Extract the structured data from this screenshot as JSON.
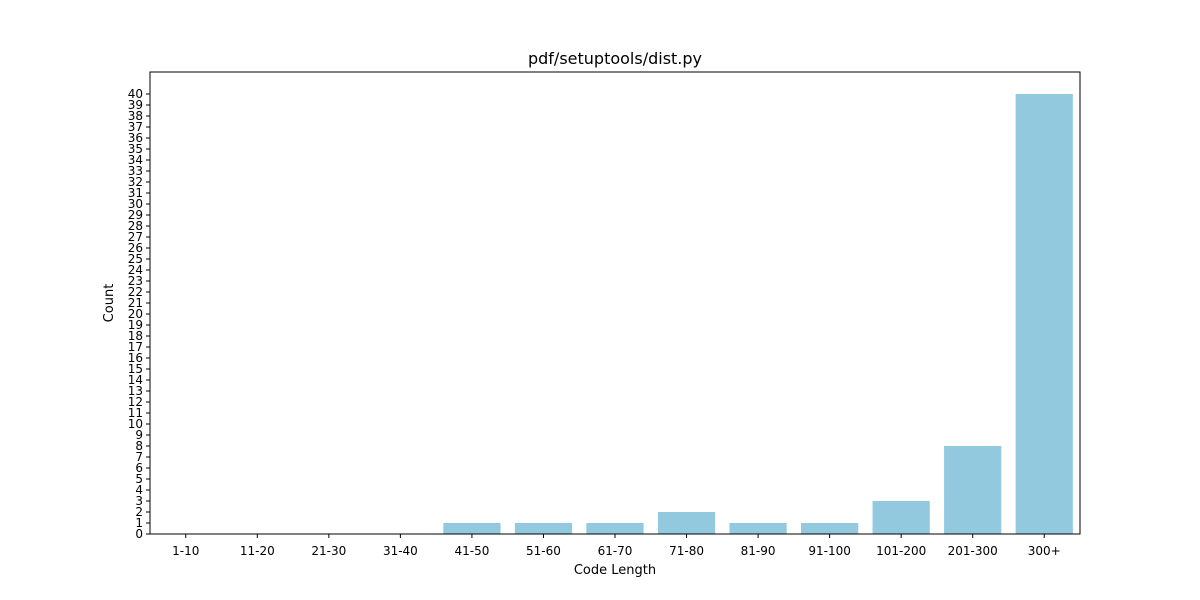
{
  "chart_data": {
    "type": "bar",
    "title": "pdf/setuptools/dist.py",
    "xlabel": "Code Length",
    "ylabel": "Count",
    "categories": [
      "1-10",
      "11-20",
      "21-30",
      "31-40",
      "41-50",
      "51-60",
      "61-70",
      "71-80",
      "81-90",
      "91-100",
      "101-200",
      "201-300",
      "300+"
    ],
    "values": [
      0,
      0,
      0,
      0,
      1,
      1,
      1,
      2,
      1,
      1,
      3,
      8,
      40
    ],
    "ylim": [
      0,
      42
    ],
    "yticks": [
      0,
      1,
      2,
      3,
      4,
      5,
      6,
      7,
      8,
      9,
      10,
      11,
      12,
      13,
      14,
      15,
      16,
      17,
      18,
      19,
      20,
      21,
      22,
      23,
      24,
      25,
      26,
      27,
      28,
      29,
      30,
      31,
      32,
      33,
      34,
      35,
      36,
      37,
      38,
      39,
      40
    ],
    "grid": false,
    "bar_color": "#92c9df"
  }
}
